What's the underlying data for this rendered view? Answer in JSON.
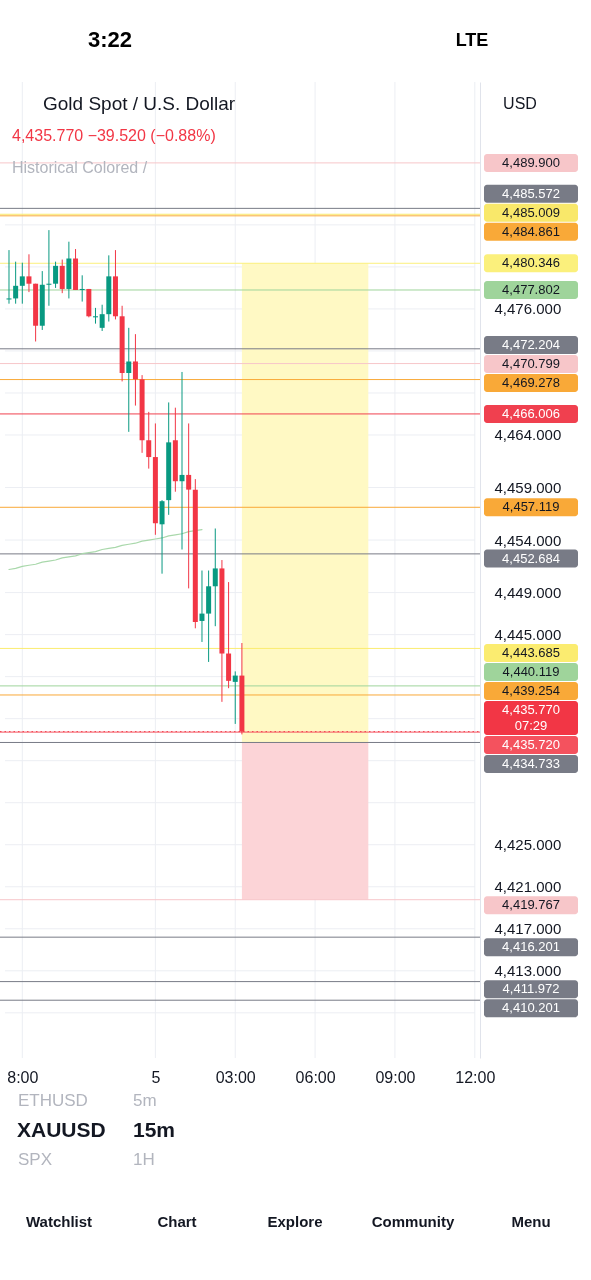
{
  "chart_data": {
    "type": "candlestick",
    "title": "Gold Spot / U.S. Dollar",
    "subtitle": "4,435.770 −39.520 (−0.88%)",
    "categories": [
      null,
      null,
      "8:00",
      null,
      null,
      null,
      null,
      null,
      null,
      null,
      null,
      null,
      null,
      null,
      null,
      null,
      null,
      null,
      null,
      null,
      null,
      null,
      "5",
      null,
      null,
      null,
      null,
      null,
      null,
      null,
      null,
      null,
      null,
      null,
      "03:00",
      null,
      null,
      null,
      null,
      null,
      null,
      null,
      null,
      null,
      null,
      null,
      "06:00",
      null,
      null,
      null,
      null,
      null,
      null,
      null,
      null,
      null,
      null,
      null,
      "09:00",
      null,
      null,
      null,
      null,
      null,
      null,
      null,
      null,
      null,
      null,
      null,
      "12:00"
    ],
    "ohlc": [
      [
        4476.9,
        4481.6,
        4476.5,
        4477.0
      ],
      [
        4477.0,
        4480.5,
        4476.5,
        4478.2
      ],
      [
        4478.2,
        4480.4,
        4476.5,
        4479.1
      ],
      [
        4479.1,
        4481.2,
        4477.6,
        4478.4
      ],
      [
        4478.4,
        4478.4,
        4472.9,
        4474.4
      ],
      [
        4474.4,
        4479.6,
        4474.0,
        4478.3
      ],
      [
        4478.3,
        4483.5,
        4476.3,
        4478.4
      ],
      [
        4478.4,
        4480.5,
        4478.0,
        4480.1
      ],
      [
        4480.1,
        4480.7,
        4477.5,
        4477.9
      ],
      [
        4477.9,
        4482.4,
        4477.0,
        4480.8
      ],
      [
        4480.8,
        4481.7,
        4477.8,
        4477.8
      ],
      [
        4477.8,
        4479.2,
        4476.7,
        4477.9
      ],
      [
        4477.9,
        4477.9,
        4475.2,
        4475.3
      ],
      [
        4475.2,
        4476.1,
        4474.6,
        4475.3
      ],
      [
        4474.2,
        4476.4,
        4473.9,
        4475.5
      ],
      [
        4475.5,
        4481.1,
        4474.8,
        4479.1
      ],
      [
        4479.1,
        4481.6,
        4475.0,
        4475.3
      ],
      [
        4475.3,
        4476.3,
        4469.1,
        4469.9
      ],
      [
        4469.9,
        4474.2,
        4464.3,
        4471.0
      ],
      [
        4471.0,
        4473.6,
        4466.8,
        4469.3
      ],
      [
        4469.3,
        4469.7,
        4462.3,
        4463.5
      ],
      [
        4463.5,
        4466.2,
        4460.8,
        4461.9
      ],
      [
        4461.9,
        4465.1,
        4454.5,
        4455.6
      ],
      [
        4455.5,
        4457.8,
        4450.8,
        4457.7
      ],
      [
        4457.8,
        4467.1,
        4456.4,
        4463.3
      ],
      [
        4463.5,
        4466.6,
        4458.6,
        4459.6
      ],
      [
        4459.6,
        4470.0,
        4453.1,
        4460.2
      ],
      [
        4460.2,
        4465.1,
        4449.4,
        4458.8
      ],
      [
        4458.8,
        4459.8,
        4445.6,
        4446.2
      ],
      [
        4446.3,
        4451.1,
        4444.3,
        4447.0
      ],
      [
        4447.0,
        4451.1,
        4442.4,
        4449.6
      ],
      [
        4449.6,
        4455.1,
        4445.8,
        4451.3
      ],
      [
        4451.3,
        4452.1,
        4438.6,
        4443.2
      ],
      [
        4443.2,
        4450.0,
        4439.9,
        4440.6
      ],
      [
        4440.5,
        4441.5,
        4436.5,
        4441.1
      ],
      [
        4441.1,
        4444.2,
        4435.5,
        4435.77
      ],
      null,
      null,
      null,
      null,
      null,
      null,
      null,
      null,
      null,
      null,
      null,
      null,
      null,
      null,
      null,
      null,
      null,
      null,
      null,
      null,
      null,
      null,
      null,
      null,
      null,
      null,
      null,
      null,
      null,
      null,
      null,
      null,
      null,
      null,
      null
    ],
    "colors": [
      "#089981",
      "#089981",
      "#089981",
      "#f23645",
      "#f23645",
      "#089981",
      "#089981",
      "#089981",
      "#f23645",
      "#089981",
      "#f23645",
      "#089981",
      "#f23645",
      "#089981",
      "#089981",
      "#089981",
      "#f23645",
      "#f23645",
      "#089981",
      "#f23645",
      "#f23645",
      "#f23645",
      "#f23645",
      "#089981",
      "#089981",
      "#f23645",
      "#089981",
      "#f23645",
      "#f23645",
      "#089981",
      "#089981",
      "#089981",
      "#f23645",
      "#f23645",
      "#089981",
      "#f23645",
      null,
      null,
      null,
      null,
      null,
      null,
      null,
      null,
      null,
      null,
      null,
      null,
      null,
      null,
      null,
      null,
      null,
      null,
      null,
      null,
      null,
      null,
      null,
      null,
      null,
      null,
      null,
      null,
      null,
      null,
      null,
      null,
      null,
      null,
      null
    ],
    "series": [
      {
        "type": "line",
        "color": "#a9d8ab",
        "values": [
          4451.2,
          4451.3,
          4451.5,
          4451.6,
          4451.7,
          4451.9,
          4452.0,
          4452.1,
          4452.3,
          4452.4,
          4452.5,
          4452.7,
          4452.8,
          4452.9,
          4453.1,
          4453.2,
          4453.3,
          4453.5,
          4453.6,
          4453.7,
          4453.9,
          4454.0,
          4454.1,
          4454.2,
          4454.4,
          4454.5,
          4454.6,
          4454.8,
          4454.9,
          4455.0,
          null,
          null,
          null,
          null,
          null,
          null,
          null,
          null,
          null,
          null,
          null,
          null,
          null,
          null,
          null,
          null,
          null,
          null,
          null,
          null,
          null,
          null,
          null,
          null,
          null,
          null,
          null,
          null,
          null,
          null,
          null,
          null,
          null,
          null,
          null,
          null,
          null,
          null,
          null,
          null,
          null
        ]
      }
    ],
    "ylim": [
      4404.7,
      4497.6
    ],
    "yticks": [
      {
        "value": 4484,
        "label": null
      },
      {
        "value": 4480,
        "label": null
      },
      {
        "value": 4476,
        "label": "4,476.000"
      },
      {
        "value": 4472,
        "label": null
      },
      {
        "value": 4468,
        "label": null
      },
      {
        "value": 4464,
        "label": "4,464.000"
      },
      {
        "value": 4459,
        "label": "4,459.000"
      },
      {
        "value": 4454,
        "label": "4,454.000"
      },
      {
        "value": 4449,
        "label": "4,449.000"
      },
      {
        "value": 4445,
        "label": "4,445.000"
      },
      {
        "value": 4441,
        "label": null
      },
      {
        "value": 4437,
        "label": null
      },
      {
        "value": 4433,
        "label": null
      },
      {
        "value": 4429,
        "label": null
      },
      {
        "value": 4425,
        "label": "4,425.000"
      },
      {
        "value": 4421,
        "label": "4,421.000"
      },
      {
        "value": 4417,
        "label": "4,417.000"
      },
      {
        "value": 4413,
        "label": "4,413.000"
      },
      {
        "value": 4409,
        "label": null
      }
    ],
    "grid": true,
    "bands": [
      {
        "axis": "y",
        "from": 4434.733,
        "to": 4480.346,
        "color": "#fff9c4"
      },
      {
        "axis": "y",
        "from": 4419.767,
        "to": 4434.733,
        "color": "#fcd4d7"
      }
    ],
    "ref_lines": [
      {
        "axis": "y",
        "value": 4489.9,
        "label": "4,489.900",
        "color": "#f7c6c9"
      },
      {
        "axis": "y",
        "value": 4485.572,
        "label": "4,485.572",
        "color": "#787b86"
      },
      {
        "axis": "y",
        "value": 4485.009,
        "label": "4,485.009",
        "color": "#f9e86a"
      },
      {
        "axis": "y",
        "value": 4484.861,
        "label": "4,484.861",
        "color": "#f9a938"
      },
      {
        "axis": "y",
        "value": 4480.346,
        "label": "4,480.346",
        "color": "#fbf07c"
      },
      {
        "axis": "y",
        "value": 4477.802,
        "label": "4,477.802",
        "color": "#9fd49b"
      },
      {
        "axis": "y",
        "value": 4472.204,
        "label": "4,472.204",
        "color": "#787b86"
      },
      {
        "axis": "y",
        "value": 4470.799,
        "label": "4,470.799",
        "color": "#f7c6c9"
      },
      {
        "axis": "y",
        "value": 4469.278,
        "label": "4,469.278",
        "color": "#f9a938"
      },
      {
        "axis": "y",
        "value": 4466.006,
        "label": "4,466.006",
        "color": "#f0404f"
      },
      {
        "axis": "y",
        "value": 4457.119,
        "label": "4,457.119",
        "color": "#f9a938"
      },
      {
        "axis": "y",
        "value": 4452.684,
        "label": "4,452.684",
        "color": "#787b86"
      },
      {
        "axis": "y",
        "value": 4443.685,
        "label": "4,443.685",
        "color": "#fbec70"
      },
      {
        "axis": "y",
        "value": 4440.119,
        "label": "4,440.119",
        "color": "#9fd49b"
      },
      {
        "axis": "y",
        "value": 4439.254,
        "label": "4,439.254",
        "color": "#f9a938"
      },
      {
        "axis": "y",
        "value": 4435.77,
        "label": "4,435.770\n07:29",
        "color": "#f23645",
        "line_style": "dotted"
      },
      {
        "axis": "y",
        "value": 4435.72,
        "label": "4,435.720",
        "color": "#f4525e"
      },
      {
        "axis": "y",
        "value": 4434.733,
        "label": "4,434.733",
        "color": "#787b86"
      },
      {
        "axis": "y",
        "value": 4419.767,
        "label": "4,419.767",
        "color": "#f7c6c9"
      },
      {
        "axis": "y",
        "value": 4416.201,
        "label": "4,416.201",
        "color": "#787b86"
      },
      {
        "axis": "y",
        "value": 4411.972,
        "label": "4,411.972",
        "color": "#787b86"
      },
      {
        "axis": "y",
        "value": 4410.201,
        "label": "4,410.201",
        "color": "#787b86"
      }
    ],
    "annotations": [
      "Historical Colored /",
      "3:22",
      "LTE",
      "USD",
      "ETHUSD",
      "5m",
      "XAUUSD",
      "15m",
      "SPX",
      "1H",
      "Watchlist",
      "Chart",
      "Explore",
      "Community",
      "Menu"
    ]
  }
}
